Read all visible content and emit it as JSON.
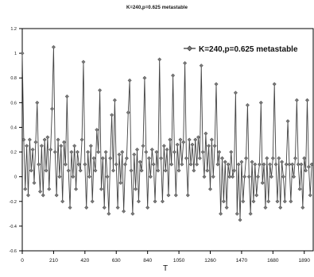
{
  "chart_data": {
    "type": "line",
    "title": "K=240,p=0.625 metastable",
    "xlabel": "T",
    "ylabel": "",
    "xlim": [
      0,
      1950
    ],
    "ylim": [
      -0.6,
      1.2
    ],
    "xticks": [
      0,
      210,
      420,
      630,
      840,
      1050,
      1260,
      1470,
      1680,
      1890
    ],
    "yticks": [
      -0.6,
      -0.4,
      -0.2,
      0,
      0.2,
      0.4,
      0.6,
      0.8,
      1,
      1.2
    ],
    "xtick_labels": [
      "0",
      "210",
      "420",
      "630",
      "840",
      "1050",
      "1260",
      "1470",
      "1680",
      "1890"
    ],
    "ytick_labels": [
      "-0.6",
      "-0.4",
      "-0.2",
      "0",
      "0.2",
      "0.4",
      "0.6",
      "0.8",
      "1",
      "1.2"
    ],
    "legend_position": "top-right",
    "grid": false,
    "marker": "diamond",
    "series": [
      {
        "name": "K=240,p=0.625 metastable",
        "color": "#444444",
        "marker_color": "#7a7a7a",
        "x": [
          0,
          10,
          20,
          30,
          40,
          50,
          60,
          70,
          80,
          90,
          100,
          110,
          120,
          130,
          140,
          150,
          160,
          170,
          180,
          190,
          200,
          210,
          220,
          230,
          240,
          250,
          260,
          270,
          280,
          290,
          300,
          310,
          320,
          330,
          340,
          350,
          360,
          370,
          380,
          390,
          400,
          410,
          420,
          430,
          440,
          450,
          460,
          470,
          480,
          490,
          500,
          510,
          520,
          530,
          540,
          550,
          560,
          570,
          580,
          590,
          600,
          610,
          620,
          630,
          640,
          650,
          660,
          670,
          680,
          690,
          700,
          710,
          720,
          730,
          740,
          750,
          760,
          770,
          780,
          790,
          800,
          810,
          820,
          830,
          840,
          850,
          860,
          870,
          880,
          890,
          900,
          910,
          920,
          930,
          940,
          950,
          960,
          970,
          980,
          990,
          1000,
          1010,
          1020,
          1030,
          1040,
          1050,
          1060,
          1070,
          1080,
          1090,
          1100,
          1110,
          1120,
          1130,
          1140,
          1150,
          1160,
          1170,
          1180,
          1190,
          1200,
          1210,
          1220,
          1230,
          1240,
          1250,
          1260,
          1270,
          1280,
          1290,
          1300,
          1310,
          1320,
          1330,
          1340,
          1350,
          1360,
          1370,
          1380,
          1390,
          1400,
          1410,
          1420,
          1430,
          1440,
          1450,
          1460,
          1470,
          1480,
          1490,
          1500,
          1510,
          1520,
          1530,
          1540,
          1550,
          1560,
          1570,
          1580,
          1590,
          1600,
          1610,
          1620,
          1630,
          1640,
          1650,
          1660,
          1670,
          1680,
          1690,
          1700,
          1710,
          1720,
          1730,
          1740,
          1750,
          1760,
          1770,
          1780,
          1790,
          1800,
          1810,
          1820,
          1830,
          1840,
          1850,
          1860,
          1870,
          1880,
          1890,
          1900,
          1910,
          1920,
          1930,
          1940
        ],
        "values": [
          1.0,
          0.3,
          -0.1,
          0.25,
          -0.15,
          0.3,
          0.05,
          0.22,
          -0.05,
          0.28,
          0.6,
          0.1,
          -0.12,
          0.25,
          -0.15,
          0.3,
          0.05,
          0.32,
          -0.1,
          0.22,
          0.55,
          1.05,
          0.2,
          -0.15,
          0.3,
          0.0,
          0.25,
          -0.2,
          0.28,
          0.1,
          0.65,
          0.05,
          -0.25,
          0.2,
          0.0,
          0.25,
          -0.1,
          0.2,
          0.1,
          0.05,
          0.3,
          0.93,
          0.1,
          -0.25,
          0.2,
          0.0,
          0.25,
          -0.2,
          0.15,
          0.05,
          0.38,
          0.2,
          0.7,
          -0.1,
          0.15,
          -0.25,
          0.2,
          0.0,
          -0.3,
          0.15,
          0.5,
          0.05,
          0.62,
          0.1,
          -0.25,
          0.18,
          -0.05,
          0.2,
          -0.28,
          0.1,
          0.15,
          0.52,
          0.78,
          0.05,
          -0.3,
          0.18,
          -0.1,
          0.22,
          -0.2,
          0.12,
          0.05,
          0.25,
          0.8,
          0.2,
          -0.25,
          0.15,
          0.0,
          0.22,
          0.1,
          -0.2,
          0.2,
          0.05,
          0.95,
          0.15,
          -0.2,
          0.25,
          0.05,
          0.22,
          -0.15,
          0.3,
          0.1,
          0.82,
          0.2,
          -0.15,
          0.26,
          0.05,
          0.3,
          0.1,
          0.28,
          0.92,
          0.15,
          -0.15,
          0.3,
          0.1,
          0.26,
          0.05,
          0.3,
          0.1,
          0.32,
          0.15,
          0.9,
          0.2,
          0.0,
          0.35,
          0.05,
          0.25,
          -0.1,
          0.3,
          0.0,
          0.25,
          0.75,
          0.1,
          0.2,
          -0.3,
          0.15,
          -0.2,
          0.12,
          -0.25,
          0.1,
          0.0,
          0.2,
          0.0,
          0.05,
          0.68,
          -0.3,
          0.1,
          -0.35,
          0.12,
          -0.2,
          0.0,
          0.15,
          0.58,
          0.0,
          -0.3,
          0.12,
          -0.2,
          0.1,
          -0.15,
          0.0,
          0.1,
          0.6,
          -0.05,
          0.1,
          -0.25,
          0.15,
          -0.2,
          0.1,
          0.0,
          0.15,
          0.75,
          0.1,
          -0.2,
          0.15,
          -0.25,
          0.12,
          0.0,
          -0.2,
          0.1,
          0.45,
          0.1,
          -0.2,
          0.1,
          0.0,
          0.15,
          0.62,
          0.1,
          -0.1,
          0.1,
          -0.25,
          0.15,
          0.05,
          0.62,
          0.08,
          -0.15,
          0.1
        ]
      }
    ]
  }
}
